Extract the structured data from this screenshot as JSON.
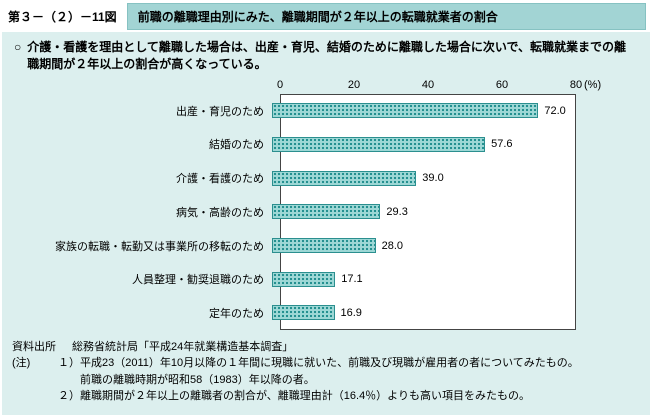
{
  "figure": {
    "number": "第３－（２）－11図",
    "title": "前職の離職理由別にみた、離職期間が２年以上の転職就業者の割合"
  },
  "summary": {
    "bullet": "○",
    "text": "介護・看護を理由として離職した場合は、出産・育児、結婚のために離職した場合に次いで、転職就業までの離職期間が２年以上の割合が高くなっている。"
  },
  "chart_data": {
    "type": "bar",
    "orientation": "horizontal",
    "title": "前職の離職理由別にみた、離職期間が２年以上の転職就業者の割合",
    "categories": [
      "出産・育児のため",
      "結婚のため",
      "介護・看護のため",
      "病気・高齢のため",
      "家族の転職・転勤又は事業所の移転のため",
      "人員整理・勧奨退職のため",
      "定年のため"
    ],
    "values": [
      72.0,
      57.6,
      39.0,
      29.3,
      28.0,
      17.1,
      16.9
    ],
    "value_labels": [
      "72.0",
      "57.6",
      "39.0",
      "29.3",
      "28.0",
      "17.1",
      "16.9"
    ],
    "xlim": [
      0,
      80
    ],
    "x_ticks": [
      0,
      20,
      40,
      60,
      80
    ],
    "unit_label": "(%)",
    "grid": false,
    "legend": "none",
    "bar_color": "#9ed8d6",
    "bar_dot_color": "#1d8c8c",
    "bar_border_color": "#2b8f8f"
  },
  "footer": {
    "source_label": "資料出所",
    "source_text": "総務省統計局「平成24年就業構造基本調査」",
    "note_label": "(注)",
    "notes": [
      "１）平成23（2011）年10月以降の１年間に現職に就いた、前職及び現職が雇用者の者についてみたもの。",
      "前職の離職時期が昭和58（1983）年以降の者。",
      "２）離職期間が２年以上の離職者の割合が、離職理由計（16.4％）よりも高い項目をみたもの。"
    ]
  }
}
